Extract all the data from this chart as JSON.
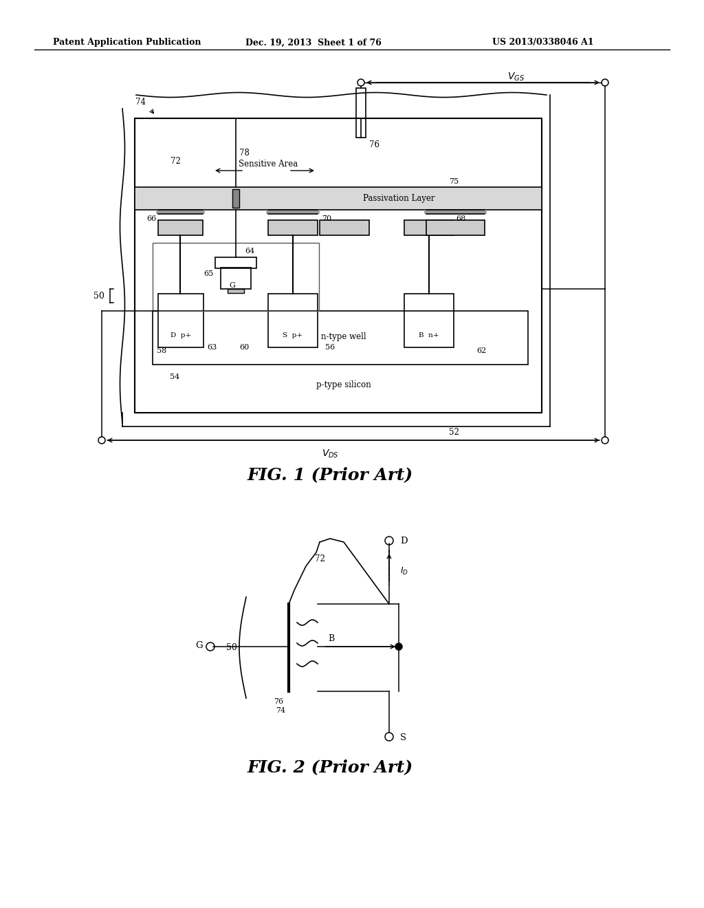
{
  "bg_color": "#ffffff",
  "header_left": "Patent Application Publication",
  "header_mid": "Dec. 19, 2013  Sheet 1 of 76",
  "header_right": "US 2013/0338046 A1",
  "fig1_title": "FIG. 1 (Prior Art)",
  "fig2_title": "FIG. 2 (Prior Art)",
  "lc": "#000000",
  "gray": "#888888",
  "darkgray": "#555555"
}
